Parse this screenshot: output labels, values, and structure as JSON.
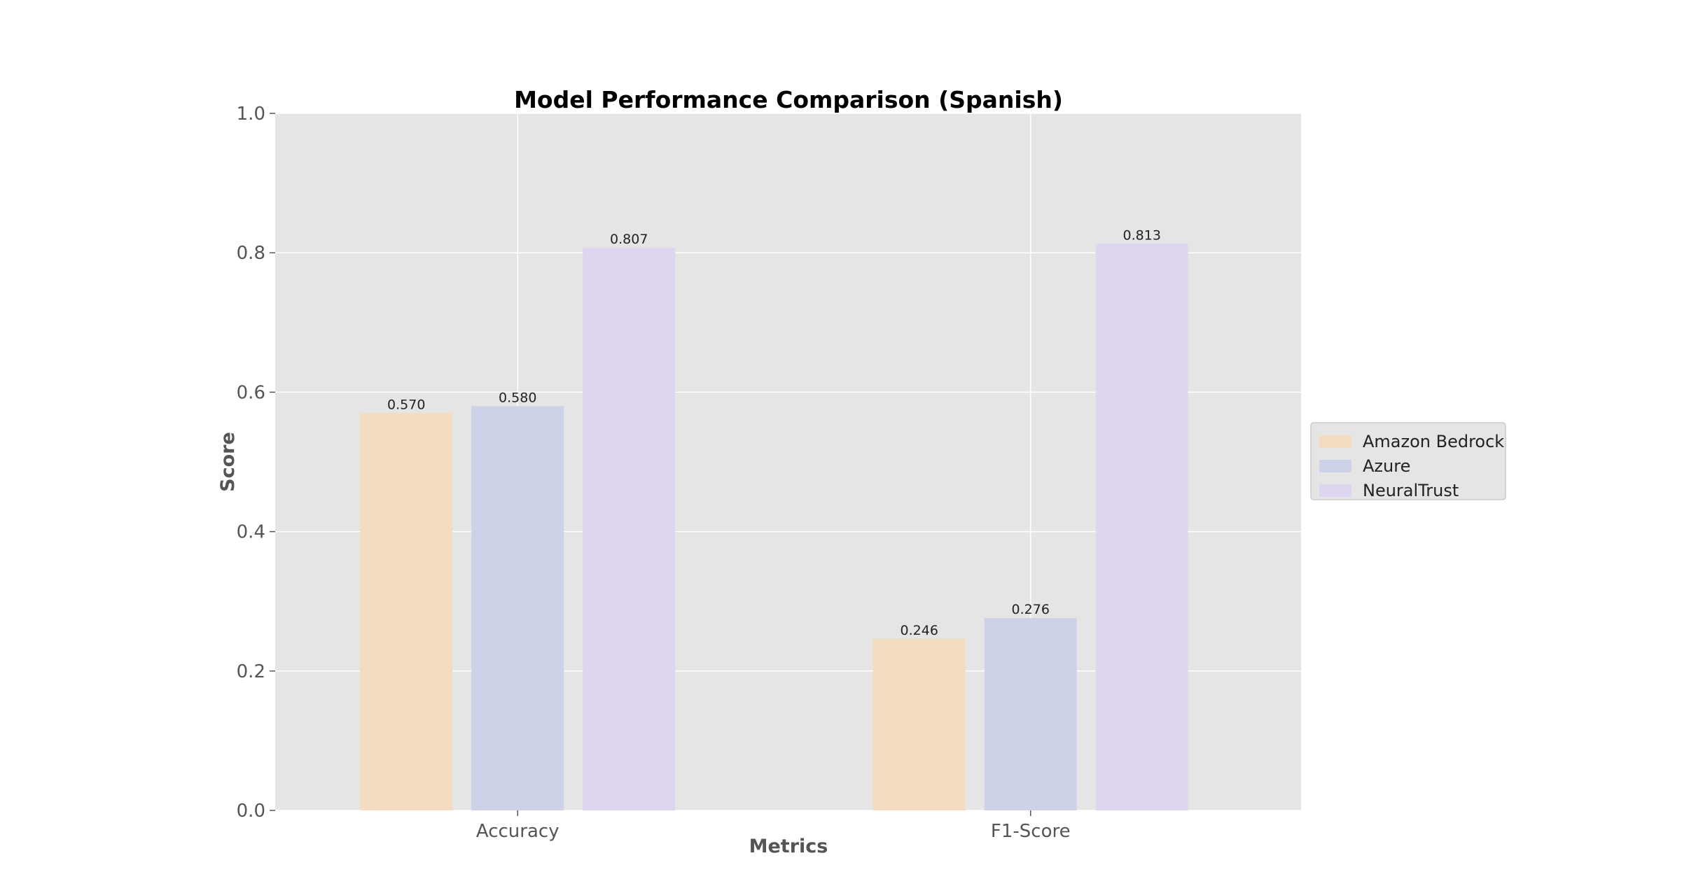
{
  "chart_data": {
    "type": "bar",
    "title": "Model Performance Comparison (Spanish)",
    "xlabel": "Metrics",
    "ylabel": "Score",
    "categories": [
      "Accuracy",
      "F1-Score"
    ],
    "series": [
      {
        "name": "Amazon Bedrock",
        "values": [
          0.57,
          0.246
        ],
        "color": "#f4dcc0"
      },
      {
        "name": "Azure",
        "values": [
          0.58,
          0.276
        ],
        "color": "#cdd2e8"
      },
      {
        "name": "NeuralTrust",
        "values": [
          0.807,
          0.813
        ],
        "color": "#ded6f0"
      }
    ],
    "ylim": [
      0,
      1.0
    ],
    "yticks": [
      "0.0",
      "0.2",
      "0.4",
      "0.6",
      "0.8",
      "1.0"
    ],
    "data_labels": [
      [
        "0.570",
        "0.246"
      ],
      [
        "0.580",
        "0.276"
      ],
      [
        "0.807",
        "0.813"
      ]
    ],
    "grid": true,
    "legend_position": "right",
    "plot_background": "#e5e5e5",
    "grid_color": "#ffffff"
  }
}
